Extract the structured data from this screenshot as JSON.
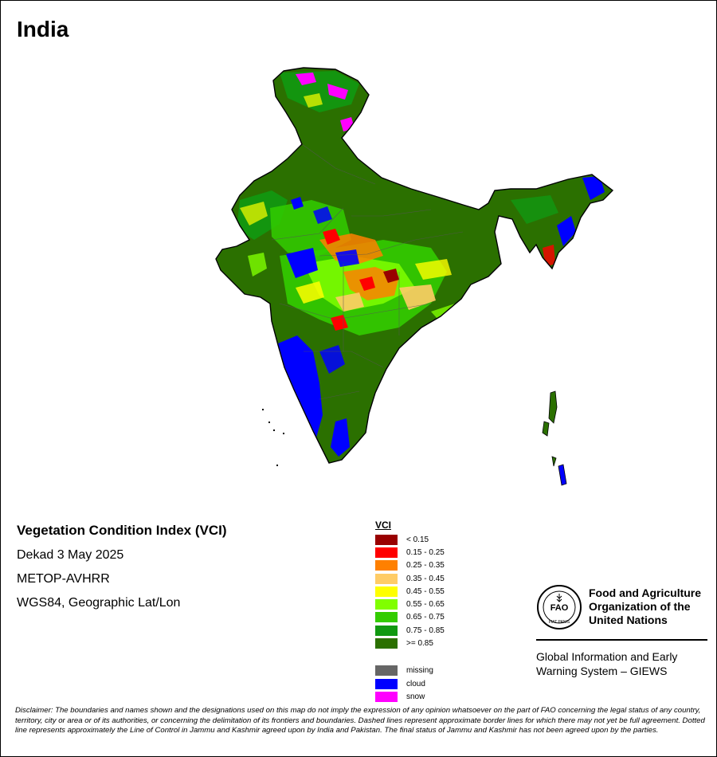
{
  "map": {
    "title": "India",
    "index_name": "Vegetation Condition Index (VCI)",
    "period": "Dekad 3 May 2025",
    "sensor": "METOP-AVHRR",
    "projection": "WGS84, Geographic Lat/Lon"
  },
  "legend": {
    "title": "VCI",
    "classes": [
      {
        "label": "< 0.15",
        "color": "#990000"
      },
      {
        "label": "0.15 - 0.25",
        "color": "#ff0000"
      },
      {
        "label": "0.25 - 0.35",
        "color": "#ff8000"
      },
      {
        "label": "0.35 - 0.45",
        "color": "#ffcc66"
      },
      {
        "label": "0.45 - 0.55",
        "color": "#ffff00"
      },
      {
        "label": "0.55 - 0.65",
        "color": "#80ff00"
      },
      {
        "label": "0.65 - 0.75",
        "color": "#33cc00"
      },
      {
        "label": "0.75 - 0.85",
        "color": "#119911"
      },
      {
        "label": ">= 0.85",
        "color": "#2b7000"
      }
    ],
    "other": [
      {
        "label": "missing",
        "color": "#666666"
      },
      {
        "label": "cloud",
        "color": "#0000ff"
      },
      {
        "label": "snow",
        "color": "#ff00ff"
      }
    ]
  },
  "organization": {
    "logo_text": "FAO",
    "logo_motto": "FIAT PANIS",
    "name_line1": "Food and Agriculture",
    "name_line2": "Organization of the",
    "name_line3": "United Nations",
    "system_line1": "Global Information and Early",
    "system_line2": "Warning System – GIEWS"
  },
  "disclaimer": "Disclaimer: The boundaries and names shown and the designations used on this map do not imply the expression of any opinion whatsoever on the part of FAO concerning the legal status of any country, territory, city or area or of its authorities, or concerning the delimitation of its frontiers and boundaries. Dashed lines represent approximate border lines for which there may not yet be full agreement. Dotted line represents approximately the Line of Control in Jammu and Kashmir agreed upon by India and Pakistan. The final status of Jammu and Kashmir has not been agreed upon by the parties."
}
